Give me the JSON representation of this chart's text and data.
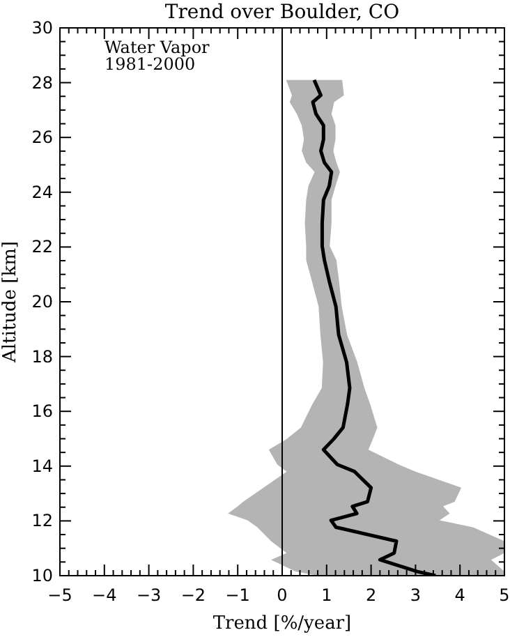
{
  "chart_data": {
    "type": "line",
    "title": "Trend over Boulder, CO",
    "xlabel": "Trend [%/year]",
    "ylabel": "Altitude [km]",
    "orientation": "horizontal",
    "annotations": [
      "Water Vapor",
      "1981-2000"
    ],
    "x": [
      10.0,
      10.15,
      10.58,
      10.83,
      11.26,
      11.77,
      12.02,
      12.27,
      12.53,
      12.7,
      13.21,
      13.8,
      14.06,
      14.6,
      14.99,
      15.41,
      16.26,
      16.85,
      17.79,
      18.8,
      19.82,
      20.75,
      21.52,
      22.03,
      22.87,
      23.72,
      24.23,
      24.74,
      25.08,
      25.51,
      25.93,
      26.44,
      26.86,
      27.29,
      27.54,
      28.1
    ],
    "series": [
      {
        "color": "#000000",
        "values": [
          3.45,
          3.04,
          2.2,
          2.52,
          2.57,
          1.21,
          1.1,
          1.68,
          1.58,
          1.92,
          2.0,
          1.63,
          1.24,
          0.93,
          1.16,
          1.37,
          1.47,
          1.52,
          1.45,
          1.27,
          1.21,
          1.06,
          0.95,
          0.9,
          0.9,
          0.93,
          1.06,
          1.11,
          0.95,
          0.87,
          0.93,
          0.93,
          0.76,
          0.69,
          0.87,
          0.72
        ],
        "lower": [
          0.8,
          0.3,
          -0.25,
          0.1,
          -0.25,
          -0.56,
          -0.78,
          -1.22,
          -1.0,
          -0.88,
          -0.42,
          0.1,
          -0.11,
          -0.3,
          0.1,
          0.42,
          0.68,
          0.89,
          0.92,
          0.86,
          0.82,
          0.67,
          0.54,
          0.54,
          0.51,
          0.54,
          0.59,
          0.73,
          0.54,
          0.44,
          0.49,
          0.44,
          0.33,
          0.17,
          0.22,
          0.09
        ],
        "upper": [
          5.0,
          5.0,
          4.7,
          5.0,
          5.0,
          4.29,
          3.54,
          3.77,
          3.62,
          3.88,
          4.03,
          3.0,
          2.62,
          1.94,
          2.04,
          2.14,
          1.98,
          1.85,
          1.69,
          1.46,
          1.34,
          1.28,
          1.22,
          1.07,
          1.11,
          1.11,
          1.2,
          1.3,
          1.22,
          1.15,
          1.2,
          1.2,
          1.11,
          1.17,
          1.39,
          1.35
        ]
      }
    ],
    "ref_lines": [
      {
        "axis": "x",
        "value": 0,
        "color": "#000000"
      }
    ],
    "xlim": [
      -5,
      5
    ],
    "xticks": [
      -5,
      {
        "value": -4.8,
        "label": null
      },
      {
        "value": -4.6,
        "label": null
      },
      {
        "value": -4.4,
        "label": null
      },
      {
        "value": -4.2,
        "label": null
      },
      -4,
      {
        "value": -3.8,
        "label": null
      },
      {
        "value": -3.6,
        "label": null
      },
      {
        "value": -3.4,
        "label": null
      },
      {
        "value": -3.2,
        "label": null
      },
      -3,
      {
        "value": -2.8,
        "label": null
      },
      {
        "value": -2.6,
        "label": null
      },
      {
        "value": -2.4,
        "label": null
      },
      {
        "value": -2.2,
        "label": null
      },
      -2,
      {
        "value": -1.8,
        "label": null
      },
      {
        "value": -1.6,
        "label": null
      },
      {
        "value": -1.4,
        "label": null
      },
      {
        "value": -1.2,
        "label": null
      },
      -1,
      {
        "value": -0.8,
        "label": null
      },
      {
        "value": -0.6,
        "label": null
      },
      {
        "value": -0.4,
        "label": null
      },
      {
        "value": -0.2,
        "label": null
      },
      0,
      {
        "value": 0.2,
        "label": null
      },
      {
        "value": 0.4,
        "label": null
      },
      {
        "value": 0.6,
        "label": null
      },
      {
        "value": 0.8,
        "label": null
      },
      1,
      {
        "value": 1.2,
        "label": null
      },
      {
        "value": 1.4,
        "label": null
      },
      {
        "value": 1.6,
        "label": null
      },
      {
        "value": 1.8,
        "label": null
      },
      2,
      {
        "value": 2.2,
        "label": null
      },
      {
        "value": 2.4,
        "label": null
      },
      {
        "value": 2.6,
        "label": null
      },
      {
        "value": 2.8,
        "label": null
      },
      3,
      {
        "value": 3.2,
        "label": null
      },
      {
        "value": 3.4,
        "label": null
      },
      {
        "value": 3.6,
        "label": null
      },
      {
        "value": 3.8,
        "label": null
      },
      4,
      {
        "value": 4.2,
        "label": null
      },
      {
        "value": 4.4,
        "label": null
      },
      {
        "value": 4.6,
        "label": null
      },
      {
        "value": 4.8,
        "label": null
      },
      5
    ],
    "ylim": [
      10,
      30
    ],
    "yticks": [
      10,
      {
        "value": 10.5,
        "label": null
      },
      {
        "value": 11,
        "label": null
      },
      {
        "value": 11.5,
        "label": null
      },
      12,
      {
        "value": 12.5,
        "label": null
      },
      {
        "value": 13,
        "label": null
      },
      {
        "value": 13.5,
        "label": null
      },
      14,
      {
        "value": 14.5,
        "label": null
      },
      {
        "value": 15,
        "label": null
      },
      {
        "value": 15.5,
        "label": null
      },
      16,
      {
        "value": 16.5,
        "label": null
      },
      {
        "value": 17,
        "label": null
      },
      {
        "value": 17.5,
        "label": null
      },
      18,
      {
        "value": 18.5,
        "label": null
      },
      {
        "value": 19,
        "label": null
      },
      {
        "value": 19.5,
        "label": null
      },
      20,
      {
        "value": 20.5,
        "label": null
      },
      {
        "value": 21,
        "label": null
      },
      {
        "value": 21.5,
        "label": null
      },
      22,
      {
        "value": 22.5,
        "label": null
      },
      {
        "value": 23,
        "label": null
      },
      {
        "value": 23.5,
        "label": null
      },
      24,
      {
        "value": 24.5,
        "label": null
      },
      {
        "value": 25,
        "label": null
      },
      {
        "value": 25.5,
        "label": null
      },
      26,
      {
        "value": 26.5,
        "label": null
      },
      {
        "value": 27,
        "label": null
      },
      {
        "value": 27.5,
        "label": null
      },
      28,
      {
        "value": 28.5,
        "label": null
      },
      {
        "value": 29,
        "label": null
      },
      {
        "value": 29.5,
        "label": null
      },
      30
    ],
    "grid": false
  }
}
